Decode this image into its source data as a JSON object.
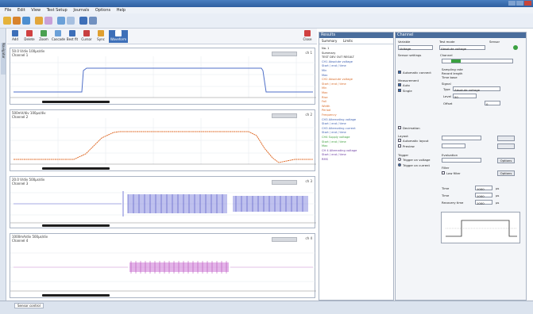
{
  "app": {
    "title": "",
    "colors": {
      "accent": "#3d6fb8",
      "ch1": "#4f6fc8",
      "ch2": "#e07030",
      "ch3": "#5a5fd0",
      "ch4": "#c050c0"
    }
  },
  "menu": {
    "items": [
      "File",
      "Edit",
      "View",
      "Test Setup",
      "Journals",
      "Options",
      "Help"
    ]
  },
  "toolbar2": {
    "buttons": [
      {
        "label": "Add",
        "icon": "add-icon"
      },
      {
        "label": "Delete",
        "icon": "delete-icon"
      },
      {
        "label": "Zoom",
        "icon": "zoom-icon"
      },
      {
        "label": "Cascade",
        "icon": "cascade-icon"
      },
      {
        "label": "Best fit",
        "icon": "fit-icon"
      },
      {
        "label": "Cursor",
        "icon": "cursor-icon"
      },
      {
        "label": "Sync",
        "icon": "sync-icon"
      },
      {
        "label": "Waveform",
        "icon": "waveform-icon"
      }
    ],
    "close_label": "Close"
  },
  "left_strip_label": "Navigator",
  "charts": [
    {
      "id": "ch1",
      "line1": "50.0 V/div  100µs/div",
      "line2": "Channel 1",
      "right": "ch 1"
    },
    {
      "id": "ch2",
      "line1": "500mV/div  100µs/div",
      "line2": "Channel 2",
      "right": "ch 2"
    },
    {
      "id": "ch3",
      "line1": "20.0 V/div  500µs/div",
      "line2": "Channel 3",
      "right": "ch 3"
    },
    {
      "id": "ch4",
      "line1": "1000mA/div  500µs/div",
      "line2": "Channel 4",
      "right": "ch 4"
    }
  ],
  "results": {
    "title": "Results",
    "tabs": [
      "Summary",
      "Limits"
    ],
    "tree": [
      {
        "t": "No. 1",
        "c": "#222"
      },
      {
        "t": "  Summary",
        "c": "#222"
      },
      {
        "t": "    TEST  DEV  OUT  RESULT",
        "c": "#222"
      },
      {
        "t": "  CH1  Absolute voltage",
        "c": "#3c5fb0"
      },
      {
        "t": "    Start / end / time",
        "c": "#3c5fb0"
      },
      {
        "t": "    Min",
        "c": "#3c5fb0"
      },
      {
        "t": "    Max",
        "c": "#3c5fb0"
      },
      {
        "t": "  CH2  Absolute voltage",
        "c": "#d86a28"
      },
      {
        "t": "    Start / end / time",
        "c": "#d86a28"
      },
      {
        "t": "    Min",
        "c": "#d86a28"
      },
      {
        "t": "    Max",
        "c": "#d86a28"
      },
      {
        "t": "    Rise",
        "c": "#d86a28"
      },
      {
        "t": "    Fall",
        "c": "#d86a28"
      },
      {
        "t": "    Width",
        "c": "#d86a28"
      },
      {
        "t": "    Period",
        "c": "#d86a28"
      },
      {
        "t": "    Frequency",
        "c": "#d86a28"
      },
      {
        "t": "  CH3  Alternating voltage",
        "c": "#3c5fb0"
      },
      {
        "t": "    Start / end / time",
        "c": "#3c5fb0"
      },
      {
        "t": "  CH3  Alternating current",
        "c": "#3c5fb0"
      },
      {
        "t": "    Start / end / time",
        "c": "#3c5fb0"
      },
      {
        "t": "  CH4  Supply voltage",
        "c": "#40a040"
      },
      {
        "t": "    Start / end / time",
        "c": "#40a040"
      },
      {
        "t": "    Max",
        "c": "#40a040"
      },
      {
        "t": "  CH 4  Alternating voltage",
        "c": "#6a3aa0"
      },
      {
        "t": "    Start / end / time",
        "c": "#6a3aa0"
      },
      {
        "t": "    RMS",
        "c": "#6a3aa0"
      }
    ]
  },
  "settings": {
    "title": "Channel",
    "col1": "Variable",
    "col2": "Test mode",
    "col3": "Sensor",
    "combo1": "Voltage",
    "combo2": "Absolute voltage",
    "sensor_settings": "Sensor settings",
    "channel": "Channel",
    "automatic_connect": "Automatic connect",
    "measurement": "Measurement",
    "auto": "Auto",
    "single": "Single",
    "info1": "Sampling rate",
    "info2": "Record length",
    "info3": "Time base",
    "signal": "Signal",
    "type_label": "Type",
    "type_value": "Absolute voltage",
    "level_label": "Level",
    "level_value": "50",
    "offset_label": "Offset",
    "offset_value": "0",
    "decimation": "Decimation",
    "layout": "Layout",
    "auto_layout": "Automatic layout",
    "preview": "Preview",
    "trigger": "Trigger",
    "trigger_on_voltage": "Trigger on voltage",
    "trigger_on_current": "Trigger on current",
    "evaluation": "Evaluation",
    "filter": "Filter",
    "low_filter": "Low filter",
    "options_btn": "Options",
    "time_label1": "Time",
    "time_value1": "1000",
    "time_label2": "Time",
    "time_value2": "1000",
    "recovery_label": "Recovery time",
    "recovery_value": "1000",
    "unit": "µs"
  },
  "status": {
    "tab": "Sensor control",
    "left": "",
    "right": ""
  }
}
